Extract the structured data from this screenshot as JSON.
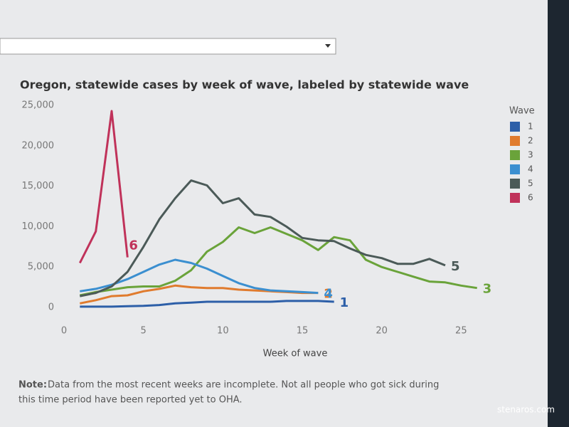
{
  "chart_data": {
    "type": "line",
    "title": "Oregon, statewide cases by week of wave, labeled by statewide wave",
    "x_label": "Week of wave",
    "legend_title": "Wave",
    "legend_position": "right",
    "xlim": [
      0,
      27
    ],
    "xticks": [
      0,
      5,
      10,
      15,
      20,
      25
    ],
    "ylim": [
      0,
      25000
    ],
    "yticks": [
      0,
      {
        "value": 5000,
        "label": "5,000"
      },
      {
        "value": 10000,
        "label": "10,000"
      },
      {
        "value": 15000,
        "label": "15,000"
      },
      {
        "value": 20000,
        "label": "20,000"
      },
      {
        "value": 25000,
        "label": "25,000"
      }
    ],
    "grid": false,
    "series": [
      {
        "name": "1",
        "color": "#2d5fa8",
        "x": [
          1,
          2,
          3,
          4,
          5,
          6,
          7,
          8,
          9,
          10,
          11,
          12,
          13,
          14,
          15,
          16,
          17
        ],
        "values": [
          100,
          100,
          100,
          150,
          200,
          300,
          500,
          600,
          700,
          700,
          700,
          700,
          700,
          800,
          800,
          800,
          700
        ]
      },
      {
        "name": "2",
        "color": "#e07b2e",
        "x": [
          1,
          2,
          3,
          4,
          5,
          6,
          7,
          8,
          9,
          10,
          11,
          12,
          13,
          14,
          15,
          16
        ],
        "values": [
          500,
          900,
          1400,
          1500,
          2000,
          2300,
          2700,
          2500,
          2400,
          2400,
          2200,
          2100,
          2000,
          1900,
          1800,
          1800
        ]
      },
      {
        "name": "3",
        "color": "#6aa33a",
        "x": [
          1,
          2,
          3,
          4,
          5,
          6,
          7,
          8,
          9,
          10,
          11,
          12,
          13,
          14,
          15,
          16,
          17,
          18,
          19,
          20,
          21,
          22,
          23,
          24,
          25,
          26
        ],
        "values": [
          1500,
          1900,
          2200,
          2500,
          2600,
          2600,
          3300,
          4600,
          6900,
          8100,
          9900,
          9200,
          9900,
          9100,
          8300,
          7100,
          8700,
          8300,
          5900,
          5000,
          4400,
          3800,
          3200,
          3100,
          2700,
          2400
        ]
      },
      {
        "name": "4",
        "color": "#3b8fd0",
        "x": [
          1,
          2,
          3,
          4,
          5,
          6,
          7,
          8,
          9,
          10,
          11,
          12,
          13,
          14,
          15,
          16
        ],
        "values": [
          2000,
          2300,
          2800,
          3500,
          4400,
          5300,
          5900,
          5500,
          4800,
          3900,
          3000,
          2400,
          2100,
          2000,
          1900,
          1800
        ]
      },
      {
        "name": "5",
        "color": "#4b5a58",
        "x": [
          1,
          2,
          3,
          4,
          5,
          6,
          7,
          8,
          9,
          10,
          11,
          12,
          13,
          14,
          15,
          16,
          17,
          18,
          19,
          20,
          21,
          22,
          23,
          24
        ],
        "values": [
          1400,
          1800,
          2600,
          4400,
          7500,
          10900,
          13500,
          15700,
          15100,
          12900,
          13500,
          11500,
          11200,
          10000,
          8600,
          8300,
          8200,
          7300,
          6500,
          6100,
          5400,
          5400,
          6000,
          5200
        ]
      },
      {
        "name": "6",
        "color": "#c0325a",
        "x": [
          1,
          2,
          3,
          4
        ],
        "values": [
          5500,
          9400,
          24300,
          6200
        ]
      }
    ]
  },
  "note": {
    "label": "Note:",
    "text": [
      "Data from the most recent weeks are incomplete. Not all people who got sick during",
      "this time period have been reported yet to OHA."
    ]
  },
  "watermark": "stenaros.com"
}
